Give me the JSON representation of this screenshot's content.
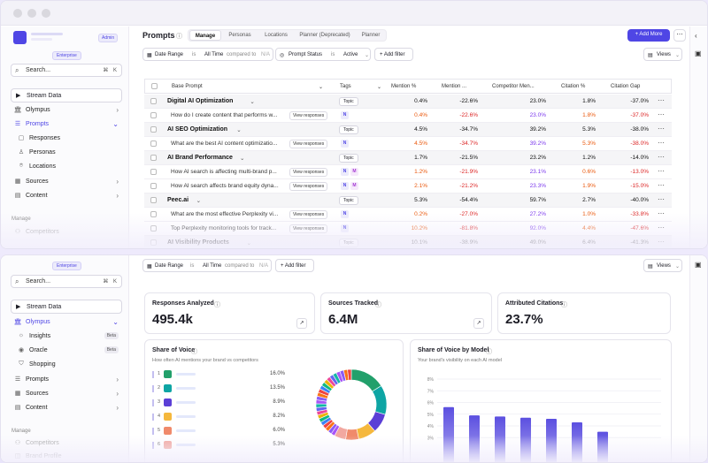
{
  "top": {
    "sidebar": {
      "admin": "Admin",
      "enterprise": "Enterprise",
      "search_placeholder": "Search...",
      "search_kbd": "⌘ K",
      "stream": "Stream Data",
      "nav": [
        "Olympus",
        "Prompts",
        "Responses",
        "Personas",
        "Locations",
        "Sources",
        "Content"
      ],
      "manage_label": "Manage",
      "competitors": "Competitors"
    },
    "header": {
      "title": "Prompts",
      "tabs": [
        "Manage",
        "Personas",
        "Locations",
        "Planner (Deprecated)",
        "Planner"
      ],
      "add_more": "+ Add More"
    },
    "filters": {
      "date_range": "Date Range",
      "is1": "is",
      "all_time": "All Time",
      "compared_to": "compared to",
      "na": "N/A",
      "prompt_status": "Prompt Status",
      "is2": "is",
      "active": "Active",
      "add_filter": "+ Add filter",
      "views": "Views"
    },
    "table": {
      "headers": [
        "Base Prompt",
        "Tags",
        "Mention %",
        "Mention ...",
        "Competitor Men...",
        "Citation %",
        "Citation Gap"
      ],
      "view_responses": "View responses",
      "rows": [
        {
          "type": "group",
          "prompt": "Digital AI Optimization",
          "tag": "Topic",
          "m1": "0.4%",
          "m2": "-22.6%",
          "comp": "23.0%",
          "cit": "1.8%",
          "gap": "-37.0%"
        },
        {
          "type": "item",
          "prompt": "How do I create content that performs w...",
          "models": [
            "N"
          ],
          "m1": "0.4%",
          "m2": "-22.6%",
          "comp": "23.0%",
          "cit": "1.8%",
          "gap": "-37.0%"
        },
        {
          "type": "group",
          "prompt": "AI SEO Optimization",
          "tag": "Topic",
          "m1": "4.5%",
          "m2": "-34.7%",
          "comp": "39.2%",
          "cit": "5.3%",
          "gap": "-38.0%"
        },
        {
          "type": "item",
          "prompt": "What are the best AI content optimizatio...",
          "models": [
            "N"
          ],
          "m1": "4.5%",
          "m2": "-34.7%",
          "comp": "39.2%",
          "cit": "5.3%",
          "gap": "-38.0%"
        },
        {
          "type": "group",
          "prompt": "AI Brand Performance",
          "tag": "Topic",
          "m1": "1.7%",
          "m2": "-21.5%",
          "comp": "23.2%",
          "cit": "1.2%",
          "gap": "-14.0%"
        },
        {
          "type": "item",
          "prompt": "How AI search is affecting multi-brand p...",
          "models": [
            "N",
            "M"
          ],
          "m1": "1.2%",
          "m2": "-21.9%",
          "comp": "23.1%",
          "cit": "0.6%",
          "gap": "-13.0%"
        },
        {
          "type": "item",
          "prompt": "How AI search affects brand equity dyna...",
          "models": [
            "N",
            "M"
          ],
          "m1": "2.1%",
          "m2": "-21.2%",
          "comp": "23.3%",
          "cit": "1.9%",
          "gap": "-15.0%"
        },
        {
          "type": "group",
          "prompt": "Peec.ai",
          "tag": "Topic",
          "m1": "5.3%",
          "m2": "-54.4%",
          "comp": "59.7%",
          "cit": "2.7%",
          "gap": "-40.0%"
        },
        {
          "type": "item",
          "prompt": "What are the most effective Perplexity vi...",
          "models": [
            "N"
          ],
          "m1": "0.2%",
          "m2": "-27.0%",
          "comp": "27.2%",
          "cit": "1.0%",
          "gap": "-33.8%"
        },
        {
          "type": "item",
          "prompt": "Top Perplexity monitoring tools for track...",
          "models": [
            "N"
          ],
          "m1": "10.2%",
          "m2": "-81.8%",
          "comp": "92.0%",
          "cit": "4.4%",
          "gap": "-47.6%"
        },
        {
          "type": "group",
          "prompt": "AI Visibility Products",
          "tag": "Topic",
          "m1": "10.1%",
          "m2": "-38.9%",
          "comp": "49.0%",
          "cit": "6.4%",
          "gap": "-41.3%"
        }
      ]
    }
  },
  "bottom": {
    "sidebar": {
      "enterprise": "Enterprise",
      "search_placeholder": "Search...",
      "search_kbd": "⌘ K",
      "stream": "Stream Data",
      "olympus": "Olympus",
      "insights": "Insights",
      "oracle": "Oracle",
      "shopping": "Shopping",
      "beta": "Beta",
      "prompts": "Prompts",
      "sources": "Sources",
      "content": "Content",
      "manage_label": "Manage",
      "competitors": "Competitors",
      "brand_profile": "Brand Profile"
    },
    "filters": {
      "date_range": "Date Range",
      "is1": "is",
      "all_time": "All Time",
      "compared_to": "compared to",
      "na": "N/A",
      "add_filter": "+ Add filter",
      "views": "Views"
    },
    "stats": [
      {
        "title": "Responses Analyzed",
        "value": "495.4k"
      },
      {
        "title": "Sources Tracked",
        "value": "6.4M"
      },
      {
        "title": "Attributed Citations",
        "value": "23.7%"
      }
    ],
    "share_of_voice": {
      "title": "Share of Voice",
      "subtitle": "How often AI mentions your brand vs competitors",
      "legend": [
        {
          "idx": "1",
          "color": "#22a06b",
          "pct": "16.0%"
        },
        {
          "idx": "2",
          "color": "#0ea5a4",
          "pct": "13.5%"
        },
        {
          "idx": "3",
          "color": "#5b3fd6",
          "pct": "8.9%"
        },
        {
          "idx": "4",
          "color": "#f5b83d",
          "pct": "8.2%"
        },
        {
          "idx": "5",
          "color": "#f08a6b",
          "pct": "6.0%"
        },
        {
          "idx": "6",
          "color": "#f2a8a0",
          "pct": "5.3%"
        }
      ]
    },
    "sov_model": {
      "title": "Share of Voice by Model",
      "subtitle": "Your brand's visibility on each AI model",
      "yticks": [
        "8%",
        "7%",
        "6%",
        "5%",
        "4%",
        "3%"
      ]
    },
    "chart_data": [
      {
        "type": "pie",
        "title": "Share of Voice",
        "values": [
          16.0,
          13.5,
          8.9,
          8.2,
          6.0,
          5.3
        ]
      },
      {
        "type": "bar",
        "title": "Share of Voice by Model",
        "ylim": [
          0,
          8
        ],
        "values": [
          5.6,
          4.9,
          4.8,
          4.7,
          4.6,
          4.3,
          3.5
        ]
      }
    ]
  }
}
